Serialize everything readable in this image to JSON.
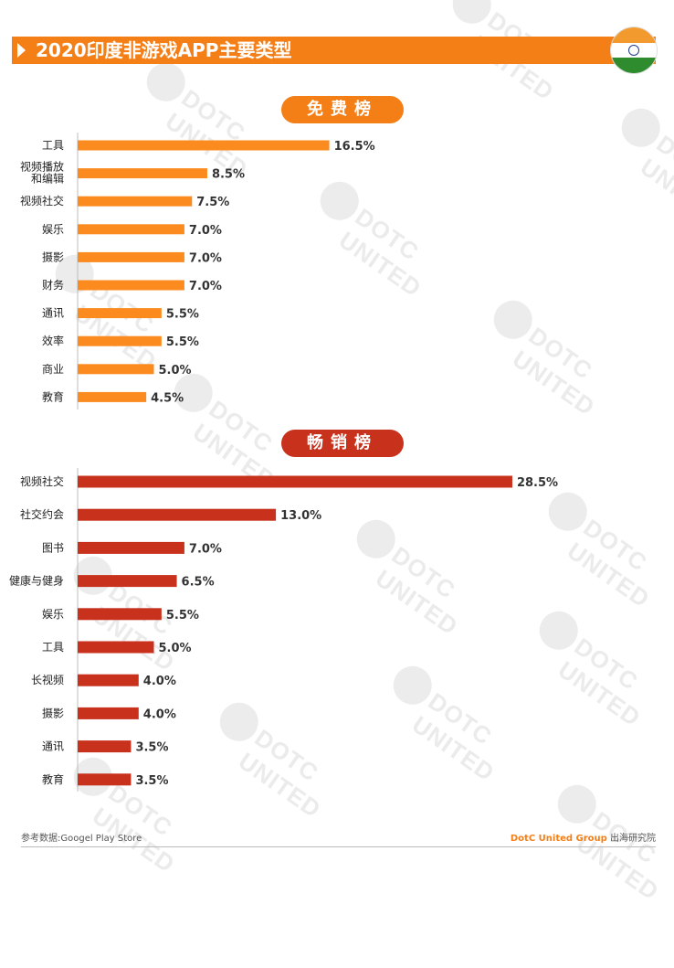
{
  "header": {
    "title": "2020印度非游戏APP主要类型"
  },
  "colors": {
    "accent": "#f57f17",
    "free_bar": "#fb8b1e",
    "top_bar": "#c8311c"
  },
  "watermark": {
    "text": "DOTC UNITED"
  },
  "chart_data": [
    {
      "type": "bar",
      "orientation": "horizontal",
      "title": "免费榜",
      "categories": [
        "工具",
        "视频播放和编辑",
        "视频社交",
        "娱乐",
        "摄影",
        "财务",
        "通讯",
        "效率",
        "商业",
        "教育"
      ],
      "category_labels": [
        [
          "工具"
        ],
        [
          "视频播放",
          "和编辑"
        ],
        [
          "视频社交"
        ],
        [
          "娱乐"
        ],
        [
          "摄影"
        ],
        [
          "财务"
        ],
        [
          "通讯"
        ],
        [
          "效率"
        ],
        [
          "商业"
        ],
        [
          "教育"
        ]
      ],
      "values": [
        16.5,
        8.5,
        7.5,
        7.0,
        7.0,
        7.0,
        5.5,
        5.5,
        5.0,
        4.5
      ],
      "value_labels": [
        "16.5%",
        "8.5%",
        "7.5%",
        "7.0%",
        "7.0%",
        "7.0%",
        "5.5%",
        "5.5%",
        "5.0%",
        "4.5%"
      ],
      "color": "#fb8b1e"
    },
    {
      "type": "bar",
      "orientation": "horizontal",
      "title": "畅销榜",
      "categories": [
        "视频社交",
        "社交约会",
        "图书",
        "健康与健身",
        "娱乐",
        "工具",
        "长视频",
        "摄影",
        "通讯",
        "教育"
      ],
      "category_labels": [
        [
          "视频社交"
        ],
        [
          "社交约会"
        ],
        [
          "图书"
        ],
        [
          "健康与健身"
        ],
        [
          "娱乐"
        ],
        [
          "工具"
        ],
        [
          "长视频"
        ],
        [
          "摄影"
        ],
        [
          "通讯"
        ],
        [
          "教育"
        ]
      ],
      "values": [
        28.5,
        13.0,
        7.0,
        6.5,
        5.5,
        5.0,
        4.0,
        4.0,
        3.5,
        3.5
      ],
      "value_labels": [
        "28.5%",
        "13.0%",
        "7.0%",
        "6.5%",
        "5.5%",
        "5.0%",
        "4.0%",
        "4.0%",
        "3.5%",
        "3.5%"
      ],
      "color": "#c8311c"
    }
  ],
  "footer": {
    "source": "参考数据:Googel Play Store",
    "brand": "DotC United Group",
    "brand_suffix": " 出海研究院"
  }
}
